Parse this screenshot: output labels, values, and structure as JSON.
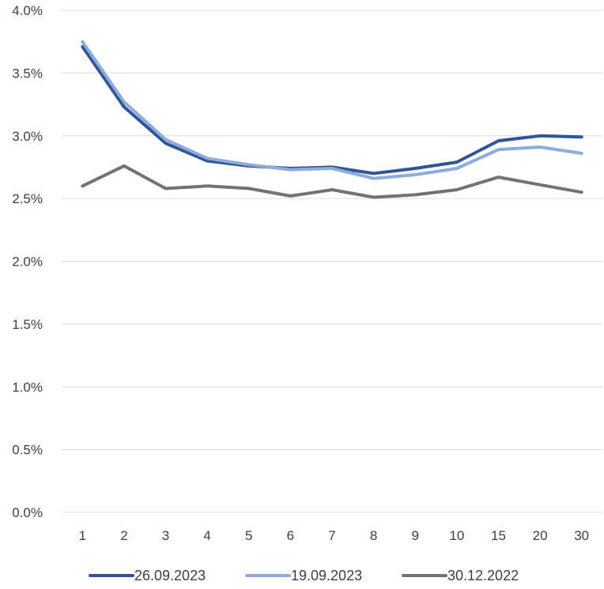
{
  "chart_data": {
    "type": "line",
    "categories": [
      "1",
      "2",
      "3",
      "4",
      "5",
      "6",
      "7",
      "8",
      "9",
      "10",
      "15",
      "20",
      "30"
    ],
    "ylim": [
      0,
      4.0
    ],
    "yticks": [
      "0.0%",
      "0.5%",
      "1.0%",
      "1.5%",
      "2.0%",
      "2.5%",
      "3.0%",
      "3.5%",
      "4.0%"
    ],
    "ytick_values": [
      0,
      0.5,
      1.0,
      1.5,
      2.0,
      2.5,
      3.0,
      3.5,
      4.0
    ],
    "grid": true,
    "legend_position": "bottom",
    "series": [
      {
        "name": "26.09.2023",
        "color": "#2f5597",
        "values": [
          3.71,
          3.23,
          2.94,
          2.8,
          2.76,
          2.74,
          2.75,
          2.7,
          2.74,
          2.79,
          2.96,
          3.0,
          2.99
        ]
      },
      {
        "name": "19.09.2023",
        "color": "#8faadc",
        "values": [
          3.75,
          3.27,
          2.97,
          2.82,
          2.77,
          2.73,
          2.74,
          2.66,
          2.69,
          2.74,
          2.89,
          2.91,
          2.86
        ]
      },
      {
        "name": "30.12.2022",
        "color": "#767171",
        "values": [
          2.6,
          2.76,
          2.58,
          2.6,
          2.58,
          2.52,
          2.57,
          2.51,
          2.53,
          2.57,
          2.67,
          2.61,
          2.55
        ]
      }
    ]
  }
}
